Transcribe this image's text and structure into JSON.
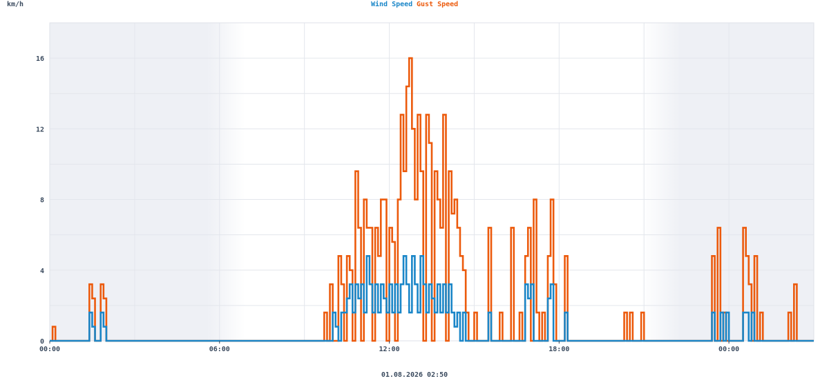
{
  "chart_data": {
    "type": "line",
    "title": "",
    "ylabel": "km/h",
    "xlabel": "",
    "footer": "01.08.2026 02:50",
    "ylim": [
      0,
      18
    ],
    "yticks": [
      0,
      4,
      8,
      12,
      16
    ],
    "xlim": [
      0,
      27
    ],
    "xtick_hours": [
      0,
      6,
      12,
      18,
      24
    ],
    "xtick_labels": [
      "00:00",
      "06:00",
      "12:00",
      "18:00",
      "00:00"
    ],
    "night_shading": true,
    "grid": true,
    "legend": "top-center",
    "step_hours": 0.1,
    "colors": {
      "wind": "#1a86c8",
      "gust": "#ec5a0c"
    },
    "series": [
      {
        "name": "Wind Speed",
        "color": "#1a86c8",
        "values": [
          0,
          0,
          0,
          0,
          0,
          0,
          0,
          0,
          0,
          0,
          0,
          0,
          0,
          0,
          0,
          0,
          0,
          0,
          0,
          0,
          0,
          0,
          0,
          0,
          0,
          0,
          0,
          0,
          0,
          0,
          0,
          0,
          0,
          0,
          0,
          0,
          0,
          0,
          0,
          0,
          0,
          0,
          0,
          0,
          0,
          0,
          0,
          0,
          0,
          0,
          0,
          0,
          0,
          0,
          0,
          0,
          0,
          0,
          0,
          0,
          0,
          0,
          0,
          0,
          0,
          0,
          0,
          0,
          0,
          0,
          0,
          0,
          0,
          0,
          0,
          0,
          0,
          0,
          0,
          0,
          0,
          0,
          0,
          0,
          0,
          0,
          0,
          0,
          0,
          0,
          0,
          0,
          0,
          0,
          0,
          0,
          0,
          0,
          0,
          0,
          0,
          0,
          0,
          0,
          0,
          0,
          0,
          0,
          0,
          0,
          0,
          0,
          0,
          0,
          0,
          0,
          0,
          0,
          0,
          0,
          0,
          0,
          0,
          0,
          0,
          0,
          0,
          0,
          0,
          0,
          0,
          0,
          0,
          0,
          0,
          0,
          0,
          0,
          0,
          0,
          0,
          0,
          0,
          0,
          0,
          0,
          0,
          0,
          0,
          0,
          0,
          0,
          0,
          0,
          0,
          0,
          0,
          0,
          0,
          0,
          0,
          0,
          0,
          0,
          0,
          0,
          0,
          0,
          0,
          0,
          0,
          0,
          0,
          0,
          0,
          0,
          0,
          0,
          0,
          0,
          0,
          0,
          0,
          0,
          0,
          0,
          0,
          0,
          0,
          0,
          0,
          0,
          0,
          0,
          0,
          0,
          0,
          0,
          0,
          0,
          0,
          0,
          0,
          0,
          0,
          0,
          0,
          0,
          0,
          0,
          0,
          0,
          0,
          0,
          0,
          0,
          0,
          0,
          0,
          0,
          0,
          0,
          0,
          0,
          0,
          0,
          0,
          0,
          0,
          0,
          0,
          0,
          0,
          0,
          0,
          0,
          0,
          0,
          0,
          0,
          0,
          0,
          0,
          0,
          0,
          0,
          0,
          0,
          0,
          0,
          0,
          0,
          0,
          0,
          0,
          0,
          0,
          0,
          0,
          0,
          0,
          0,
          0,
          0,
          0,
          0,
          0,
          0,
          0,
          0,
          0,
          0,
          0,
          0,
          0,
          0,
          0,
          0,
          0,
          0,
          0,
          0,
          0,
          0,
          0,
          0,
          0,
          0,
          0,
          0,
          0,
          0,
          0,
          0,
          0,
          0,
          0,
          0,
          0,
          0,
          0,
          0,
          0,
          0,
          0,
          0,
          0,
          0,
          0,
          0,
          0,
          0,
          0,
          0,
          0,
          0,
          0,
          0,
          0,
          0,
          0,
          0,
          0,
          0,
          0,
          0,
          0,
          0,
          0,
          0,
          0,
          0,
          0,
          0,
          0,
          0,
          0,
          0,
          0,
          0,
          0,
          0,
          0,
          0,
          0,
          0,
          0,
          0,
          0,
          0,
          0,
          0,
          0,
          0,
          0,
          0,
          0,
          0,
          0,
          0,
          0,
          0,
          0
        ]
      },
      {
        "name": "Gust Speed",
        "color": "#ec5a0c",
        "values": []
      }
    ],
    "wind_events": [
      [
        1.45,
        1.6
      ],
      [
        1.5,
        0.8
      ],
      [
        1.8,
        1.6
      ],
      [
        1.85,
        0.8
      ],
      [
        10.0,
        1.6
      ],
      [
        10.1,
        0.8
      ],
      [
        10.3,
        1.6
      ],
      [
        10.4,
        1.6
      ],
      [
        10.5,
        2.4
      ],
      [
        10.6,
        3.2
      ],
      [
        10.7,
        1.6
      ],
      [
        10.8,
        3.2
      ],
      [
        10.9,
        2.4
      ],
      [
        11.0,
        3.2
      ],
      [
        11.1,
        1.6
      ],
      [
        11.2,
        4.8
      ],
      [
        11.3,
        3.2
      ],
      [
        11.4,
        1.6
      ],
      [
        11.5,
        3.2
      ],
      [
        11.6,
        1.6
      ],
      [
        11.7,
        3.2
      ],
      [
        11.8,
        2.4
      ],
      [
        11.9,
        1.6
      ],
      [
        12.0,
        3.2
      ],
      [
        12.1,
        1.6
      ],
      [
        12.2,
        3.2
      ],
      [
        12.3,
        1.6
      ],
      [
        12.4,
        3.2
      ],
      [
        12.5,
        4.8
      ],
      [
        12.6,
        3.2
      ],
      [
        12.7,
        1.6
      ],
      [
        12.8,
        4.8
      ],
      [
        12.9,
        3.2
      ],
      [
        13.0,
        1.6
      ],
      [
        13.1,
        4.8
      ],
      [
        13.2,
        3.2
      ],
      [
        13.3,
        1.6
      ],
      [
        13.4,
        3.2
      ],
      [
        13.5,
        2.4
      ],
      [
        13.6,
        1.6
      ],
      [
        13.7,
        3.2
      ],
      [
        13.8,
        1.6
      ],
      [
        13.9,
        3.2
      ],
      [
        14.0,
        1.6
      ],
      [
        14.1,
        3.2
      ],
      [
        14.2,
        1.6
      ],
      [
        14.3,
        0.8
      ],
      [
        14.4,
        1.6
      ],
      [
        14.6,
        1.6
      ],
      [
        15.5,
        1.6
      ],
      [
        16.8,
        3.2
      ],
      [
        16.9,
        2.4
      ],
      [
        17.0,
        3.2
      ],
      [
        17.6,
        2.4
      ],
      [
        17.7,
        3.2
      ],
      [
        18.2,
        1.6
      ],
      [
        23.4,
        1.6
      ],
      [
        23.7,
        1.6
      ],
      [
        23.9,
        1.6
      ],
      [
        24.5,
        1.6
      ],
      [
        24.6,
        1.6
      ],
      [
        24.8,
        1.6
      ]
    ],
    "gust_events": [
      [
        0.1,
        0.8
      ],
      [
        1.45,
        3.2
      ],
      [
        1.5,
        2.4
      ],
      [
        1.8,
        3.2
      ],
      [
        1.85,
        2.4
      ],
      [
        9.7,
        1.6
      ],
      [
        9.9,
        3.2
      ],
      [
        10.2,
        4.8
      ],
      [
        10.3,
        3.2
      ],
      [
        10.5,
        4.8
      ],
      [
        10.6,
        4.0
      ],
      [
        10.75,
        9.6
      ],
      [
        10.9,
        6.4
      ],
      [
        11.1,
        8.0
      ],
      [
        11.2,
        6.4
      ],
      [
        11.35,
        6.4
      ],
      [
        11.5,
        6.4
      ],
      [
        11.6,
        4.8
      ],
      [
        11.7,
        8.0
      ],
      [
        11.85,
        8.0
      ],
      [
        12.0,
        6.4
      ],
      [
        12.1,
        5.6
      ],
      [
        12.25,
        8.0
      ],
      [
        12.4,
        12.8
      ],
      [
        12.5,
        9.6
      ],
      [
        12.6,
        14.4
      ],
      [
        12.65,
        16.0
      ],
      [
        12.75,
        12.0
      ],
      [
        12.85,
        8.0
      ],
      [
        13.0,
        12.8
      ],
      [
        13.1,
        9.6
      ],
      [
        13.25,
        12.8
      ],
      [
        13.35,
        11.2
      ],
      [
        13.45,
        8.0
      ],
      [
        13.55,
        9.6
      ],
      [
        13.65,
        8.0
      ],
      [
        13.75,
        6.4
      ],
      [
        13.85,
        12.8
      ],
      [
        13.95,
        8.0
      ],
      [
        14.05,
        9.6
      ],
      [
        14.2,
        7.2
      ],
      [
        14.3,
        8.0
      ],
      [
        14.4,
        6.4
      ],
      [
        14.5,
        4.8
      ],
      [
        14.6,
        4.0
      ],
      [
        14.7,
        1.6
      ],
      [
        15.0,
        1.6
      ],
      [
        15.5,
        6.4
      ],
      [
        15.9,
        1.6
      ],
      [
        16.3,
        6.4
      ],
      [
        16.6,
        1.6
      ],
      [
        16.8,
        4.8
      ],
      [
        16.9,
        6.4
      ],
      [
        17.05,
        8.0
      ],
      [
        17.2,
        1.6
      ],
      [
        17.45,
        1.6
      ],
      [
        17.6,
        4.8
      ],
      [
        17.7,
        8.0
      ],
      [
        17.8,
        3.2
      ],
      [
        18.2,
        4.8
      ],
      [
        20.3,
        1.6
      ],
      [
        20.5,
        1.6
      ],
      [
        20.9,
        1.6
      ],
      [
        23.4,
        4.8
      ],
      [
        23.6,
        6.4
      ],
      [
        23.8,
        1.6
      ],
      [
        24.5,
        6.4
      ],
      [
        24.6,
        4.8
      ],
      [
        24.7,
        3.2
      ],
      [
        24.9,
        4.8
      ],
      [
        25.1,
        1.6
      ],
      [
        26.1,
        1.6
      ],
      [
        26.3,
        3.2
      ]
    ]
  },
  "legend": {
    "wind_label": "Wind Speed",
    "gust_label": "Gust Speed"
  }
}
